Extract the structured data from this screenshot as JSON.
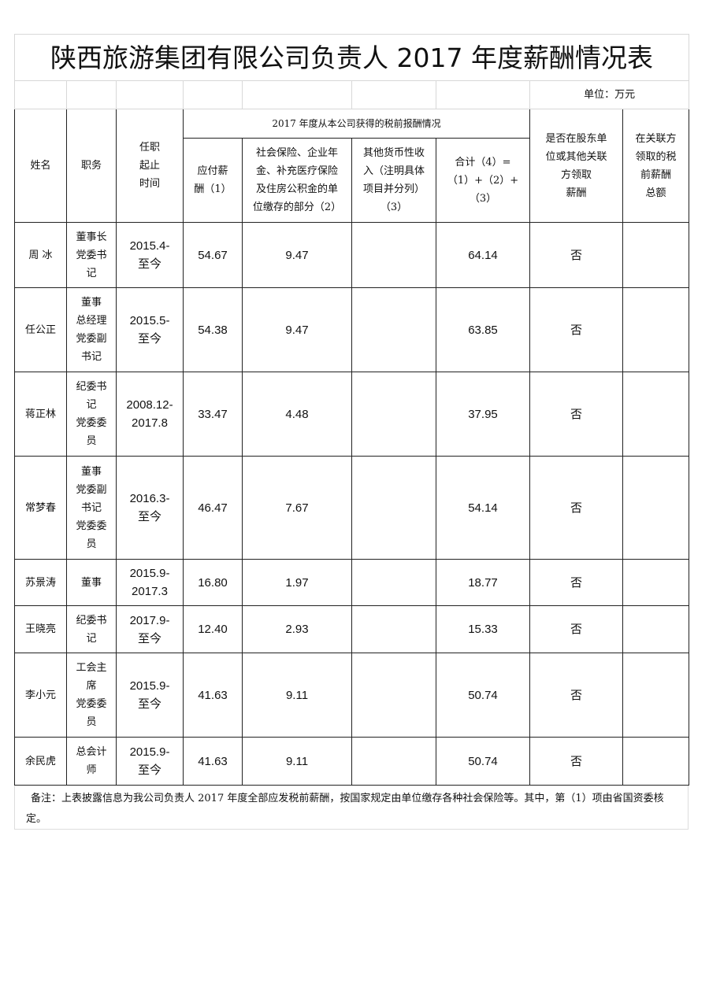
{
  "title": "陕西旅游集团有限公司负责人 2017 年度薪酬情况表",
  "unit": "单位：万元",
  "headers": {
    "name": "姓名",
    "position": "职务",
    "tenure": "任职\n起止\n时间",
    "group": "2017 年度从本公司获得的税前报酬情况",
    "pay": "应付薪\n酬（1）",
    "insurance": "社会保险、企业年\n金、补充医疗保险\n及住房公积金的单\n位缴存的部分（2）",
    "other": "其他货币性收\n入（注明具体\n项目并分列）\n（3）",
    "total": "合计（4）=\n（1）+（2）+\n（3）",
    "shareholder": "是否在股东单\n位或其他关联\n方领取\n薪酬",
    "related": "在关联方\n领取的税\n前薪酬\n总额"
  },
  "rows": [
    {
      "name": "周 冰",
      "position": "董事长\n党委书\n记",
      "tenure": "2015.4-\n至今",
      "pay": "54.67",
      "insurance": "9.47",
      "other": "",
      "total": "64.14",
      "shareholder": "否",
      "related": ""
    },
    {
      "name": "任公正",
      "position": "董事\n总经理\n党委副\n书记",
      "tenure": "2015.5-\n至今",
      "pay": "54.38",
      "insurance": "9.47",
      "other": "",
      "total": "63.85",
      "shareholder": "否",
      "related": ""
    },
    {
      "name": "蒋正林",
      "position": "纪委书\n记\n党委委\n员",
      "tenure": "2008.12-\n2017.8",
      "pay": "33.47",
      "insurance": "4.48",
      "other": "",
      "total": "37.95",
      "shareholder": "否",
      "related": ""
    },
    {
      "name": "常梦春",
      "position": "董事\n党委副\n书记\n党委委\n员",
      "tenure": "2016.3-\n至今",
      "pay": "46.47",
      "insurance": "7.67",
      "other": "",
      "total": "54.14",
      "shareholder": "否",
      "related": ""
    },
    {
      "name": "苏景涛",
      "position": "董事",
      "tenure": "2015.9-\n2017.3",
      "pay": "16.80",
      "insurance": "1.97",
      "other": "",
      "total": "18.77",
      "shareholder": "否",
      "related": ""
    },
    {
      "name": "王晓亮",
      "position": "纪委书\n记",
      "tenure": "2017.9-\n至今",
      "pay": "12.40",
      "insurance": "2.93",
      "other": "",
      "total": "15.33",
      "shareholder": "否",
      "related": ""
    },
    {
      "name": "李小元",
      "position": "工会主\n席\n党委委\n员",
      "tenure": "2015.9-\n至今",
      "pay": "41.63",
      "insurance": "9.11",
      "other": "",
      "total": "50.74",
      "shareholder": "否",
      "related": ""
    },
    {
      "name": "余民虎",
      "position": "总会计\n师",
      "tenure": "2015.9-\n至今",
      "pay": "41.63",
      "insurance": "9.11",
      "other": "",
      "total": "50.74",
      "shareholder": "否",
      "related": ""
    }
  ],
  "note": "备注：上表披露信息为我公司负责人 2017 年度全部应发税前薪酬，按国家规定由单位缴存各种社会保险等。其中，第（1）项由省国资委核定。"
}
